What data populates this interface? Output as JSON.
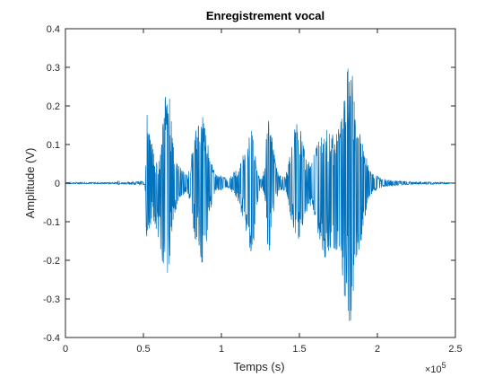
{
  "chart_data": {
    "type": "line",
    "title": "Enregistrement vocal",
    "xlabel": "Temps (s)",
    "ylabel": "Amplitude (V)",
    "x_exponent_label": "×10",
    "x_exponent_power": "5",
    "xlim": [
      0,
      250000
    ],
    "ylim": [
      -0.4,
      0.4
    ],
    "x_ticks": [
      0,
      50000,
      100000,
      150000,
      200000,
      250000
    ],
    "x_tick_labels": [
      "0",
      "0.5",
      "1",
      "1.5",
      "2",
      "2.5"
    ],
    "y_ticks": [
      -0.4,
      -0.3,
      -0.2,
      -0.1,
      0,
      0.1,
      0.2,
      0.3,
      0.4
    ],
    "y_tick_labels": [
      "-0.4",
      "-0.3",
      "-0.2",
      "-0.1",
      "0",
      "0.1",
      "0.2",
      "0.3",
      "0.4"
    ],
    "grid": false,
    "line_color": "#0072BD",
    "series": [
      {
        "x_start": 0,
        "x_end": 247000,
        "envelope": {
          "x": [
            0,
            33000,
            34000,
            35000,
            51000,
            52000,
            54000,
            56000,
            58000,
            60000,
            62000,
            64000,
            65000,
            67000,
            70000,
            72000,
            74000,
            76000,
            78000,
            80000,
            83000,
            86000,
            88000,
            90000,
            92000,
            94000,
            97000,
            100000,
            104000,
            108000,
            111000,
            114000,
            116000,
            118000,
            119000,
            120000,
            121000,
            122000,
            124000,
            126000,
            128000,
            129000,
            130000,
            131000,
            133000,
            135000,
            137000,
            139000,
            141000,
            143000,
            145000,
            147000,
            149000,
            151000,
            153000,
            155000,
            157000,
            159000,
            161000,
            163000,
            165000,
            167000,
            169000,
            171000,
            173000,
            175000,
            177000,
            179000,
            181000,
            182000,
            183000,
            184000,
            185000,
            186000,
            187000,
            188000,
            189000,
            190000,
            192000,
            194000,
            196000,
            198000,
            200000,
            203000,
            208000,
            215000,
            225000,
            235000,
            247000
          ],
          "upper": [
            0.002,
            0.002,
            0.01,
            0.002,
            0.005,
            0.19,
            0.13,
            0.09,
            0.07,
            0.06,
            0.12,
            0.25,
            0.26,
            0.22,
            0.08,
            0.05,
            0.04,
            0.03,
            0.02,
            0.05,
            0.13,
            0.17,
            0.19,
            0.14,
            0.1,
            0.05,
            0.02,
            0.02,
            0.01,
            0.03,
            0.04,
            0.08,
            0.11,
            0.12,
            0.15,
            0.14,
            0.11,
            0.06,
            0.02,
            0.01,
            0.05,
            0.17,
            0.25,
            0.19,
            0.1,
            0.05,
            0.02,
            0.02,
            0.02,
            0.05,
            0.1,
            0.14,
            0.16,
            0.14,
            0.09,
            0.06,
            0.05,
            0.07,
            0.1,
            0.13,
            0.15,
            0.15,
            0.14,
            0.13,
            0.13,
            0.14,
            0.18,
            0.22,
            0.3,
            0.33,
            0.34,
            0.28,
            0.22,
            0.16,
            0.13,
            0.12,
            0.13,
            0.11,
            0.08,
            0.05,
            0.03,
            0.02,
            0.02,
            0.01,
            0.008,
            0.005,
            0.003,
            0.003,
            0.002
          ],
          "lower": [
            -0.002,
            -0.002,
            -0.006,
            -0.002,
            -0.005,
            -0.17,
            -0.12,
            -0.1,
            -0.12,
            -0.15,
            -0.2,
            -0.28,
            -0.27,
            -0.2,
            -0.08,
            -0.05,
            -0.04,
            -0.03,
            -0.02,
            -0.05,
            -0.15,
            -0.2,
            -0.22,
            -0.18,
            -0.1,
            -0.05,
            -0.02,
            -0.02,
            -0.01,
            -0.03,
            -0.05,
            -0.1,
            -0.13,
            -0.16,
            -0.21,
            -0.22,
            -0.18,
            -0.09,
            -0.03,
            -0.01,
            -0.04,
            -0.15,
            -0.23,
            -0.18,
            -0.1,
            -0.05,
            -0.02,
            -0.02,
            -0.02,
            -0.06,
            -0.1,
            -0.13,
            -0.15,
            -0.14,
            -0.11,
            -0.08,
            -0.06,
            -0.08,
            -0.11,
            -0.16,
            -0.2,
            -0.2,
            -0.2,
            -0.19,
            -0.18,
            -0.19,
            -0.25,
            -0.3,
            -0.34,
            -0.36,
            -0.37,
            -0.33,
            -0.28,
            -0.24,
            -0.2,
            -0.18,
            -0.17,
            -0.14,
            -0.09,
            -0.05,
            -0.03,
            -0.02,
            -0.02,
            -0.01,
            -0.008,
            -0.005,
            -0.003,
            -0.003,
            -0.002
          ]
        }
      }
    ]
  }
}
